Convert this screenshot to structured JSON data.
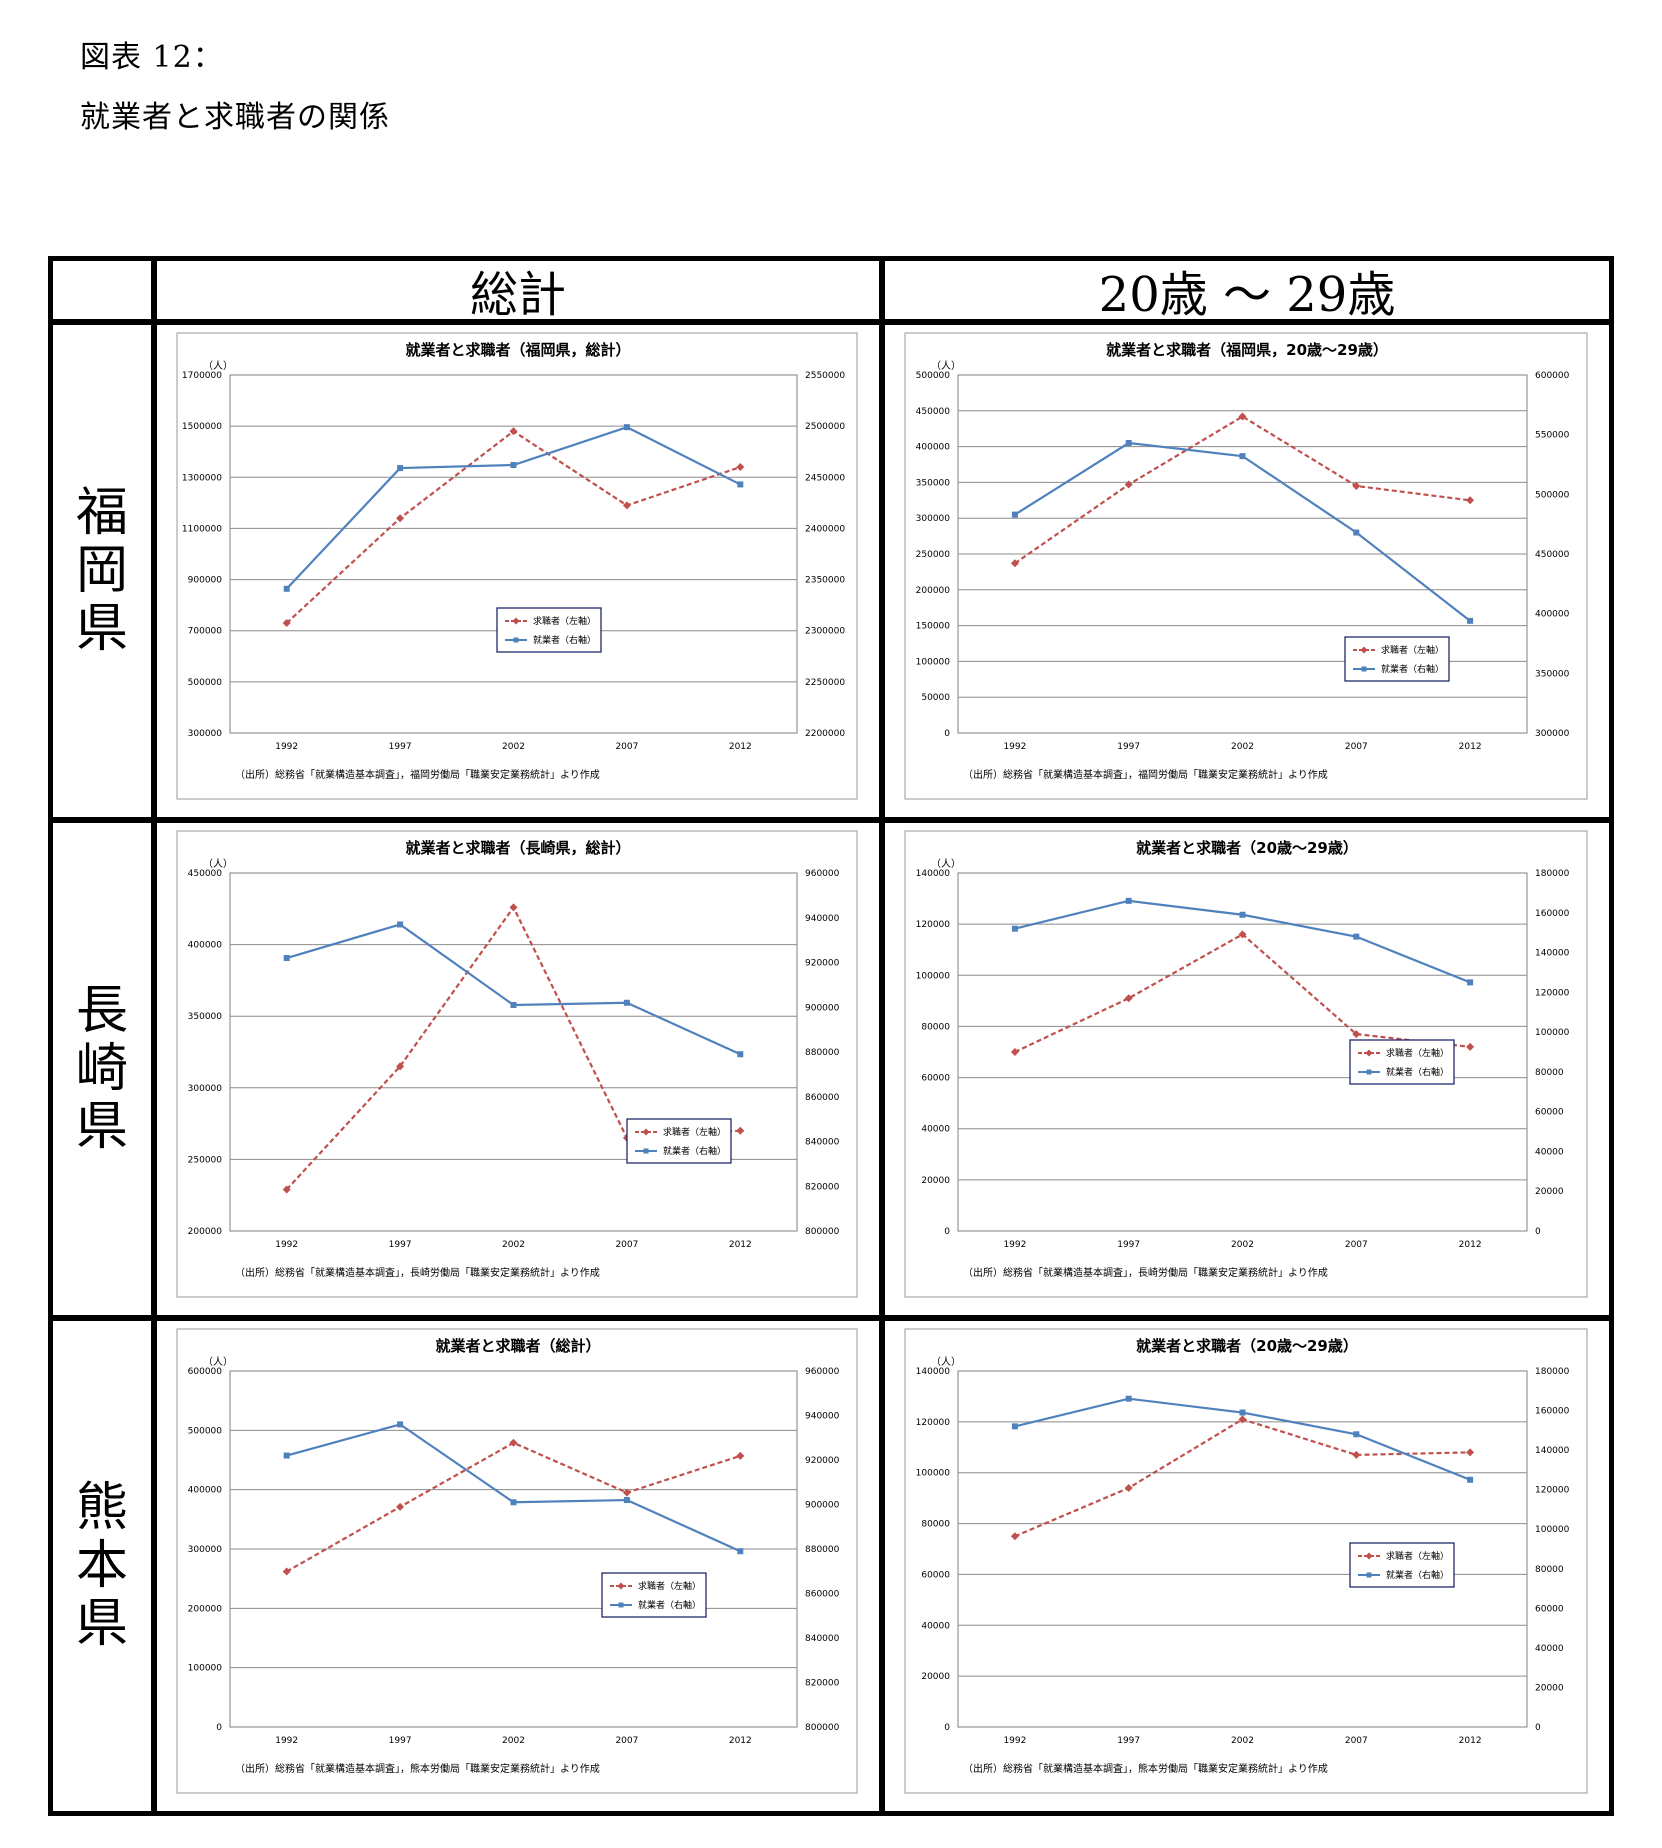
{
  "caption": {
    "line1": "図表 12：",
    "line2": "就業者と求職者の関係"
  },
  "table": {
    "col_headers": [
      "総計",
      "20歳 〜 29歳"
    ],
    "row_headers": [
      [
        "福",
        "岡",
        "県"
      ],
      [
        "長",
        "崎",
        "県"
      ],
      [
        "熊",
        "本",
        "県"
      ]
    ]
  },
  "legend": {
    "left": "求職者（左軸）",
    "right": "就業者（右軸）"
  },
  "unit_label": "（人）",
  "colors": {
    "seekers": "#c0504d",
    "employed": "#4f81bd"
  },
  "chart_data": [
    {
      "type": "line",
      "title": "就業者と求職者（福岡県，総計）",
      "categories": [
        "1992",
        "1997",
        "2002",
        "2007",
        "2012"
      ],
      "left_axis": {
        "ylim": [
          300000,
          1700000
        ],
        "ticks": [
          "1700000",
          "1500000",
          "1300000",
          "1100000",
          "900000",
          "700000",
          "500000",
          "300000"
        ]
      },
      "right_axis": {
        "ylim": [
          2200000,
          2550000
        ],
        "ticks": [
          "2550000",
          "2500000",
          "2450000",
          "2400000",
          "2350000",
          "2300000",
          "2250000",
          "2200000"
        ]
      },
      "series": [
        {
          "name": "求職者（左軸）",
          "axis": "left",
          "values": [
            730000,
            1140000,
            1480000,
            1190000,
            1340000
          ]
        },
        {
          "name": "就業者（右軸）",
          "axis": "right",
          "values": [
            2341000,
            2459000,
            2462000,
            2499000,
            2443000
          ]
        }
      ],
      "source": "（出所）総務省「就業構造基本調査」，福岡労働局「職業安定業務統計」より作成"
    },
    {
      "type": "line",
      "title": "就業者と求職者（福岡県，20歳〜29歳）",
      "categories": [
        "1992",
        "1997",
        "2002",
        "2007",
        "2012"
      ],
      "left_axis": {
        "ylim": [
          0,
          500000
        ],
        "ticks": [
          "500000",
          "450000",
          "400000",
          "350000",
          "300000",
          "250000",
          "200000",
          "150000",
          "100000",
          "50000",
          "0"
        ]
      },
      "right_axis": {
        "ylim": [
          300000,
          600000
        ],
        "ticks": [
          "600000",
          "550000",
          "500000",
          "450000",
          "400000",
          "350000",
          "300000"
        ]
      },
      "series": [
        {
          "name": "求職者（左軸）",
          "axis": "left",
          "values": [
            237000,
            347000,
            442000,
            345000,
            325000
          ]
        },
        {
          "name": "就業者（右軸）",
          "axis": "right",
          "values": [
            483000,
            543000,
            532000,
            468000,
            394000
          ]
        }
      ],
      "source": "（出所）総務省「就業構造基本調査」，福岡労働局「職業安定業務統計」より作成"
    },
    {
      "type": "line",
      "title": "就業者と求職者（長崎県，総計）",
      "categories": [
        "1992",
        "1997",
        "2002",
        "2007",
        "2012"
      ],
      "left_axis": {
        "ylim": [
          200000,
          450000
        ],
        "ticks": [
          "450000",
          "400000",
          "350000",
          "300000",
          "250000",
          "200000"
        ]
      },
      "right_axis": {
        "ylim": [
          800000,
          960000
        ],
        "ticks": [
          "960000",
          "940000",
          "920000",
          "900000",
          "880000",
          "860000",
          "840000",
          "820000",
          "800000"
        ]
      },
      "series": [
        {
          "name": "求職者（左軸）",
          "axis": "left",
          "values": [
            229000,
            315000,
            426000,
            265000,
            270000
          ]
        },
        {
          "name": "就業者（右軸）",
          "axis": "right",
          "values": [
            922000,
            937000,
            901000,
            902000,
            879000
          ]
        }
      ],
      "source": "（出所）総務省「就業構造基本調査」，長崎労働局「職業安定業務統計」より作成"
    },
    {
      "type": "line",
      "title": "就業者と求職者（20歳〜29歳）",
      "categories": [
        "1992",
        "1997",
        "2002",
        "2007",
        "2012"
      ],
      "left_axis": {
        "ylim": [
          0,
          140000
        ],
        "ticks": [
          "140000",
          "120000",
          "100000",
          "80000",
          "60000",
          "40000",
          "20000",
          "0"
        ]
      },
      "right_axis": {
        "ylim": [
          0,
          180000
        ],
        "ticks": [
          "180000",
          "160000",
          "140000",
          "120000",
          "100000",
          "80000",
          "60000",
          "40000",
          "20000",
          "0"
        ]
      },
      "series": [
        {
          "name": "求職者（左軸）",
          "axis": "left",
          "values": [
            70000,
            91000,
            116000,
            77000,
            72000
          ]
        },
        {
          "name": "就業者（右軸）",
          "axis": "right",
          "values": [
            152000,
            166000,
            159000,
            148000,
            125000
          ]
        }
      ],
      "source": "（出所）総務省「就業構造基本調査」，長崎労働局「職業安定業務統計」より作成"
    },
    {
      "type": "line",
      "title": "就業者と求職者（総計）",
      "categories": [
        "1992",
        "1997",
        "2002",
        "2007",
        "2012"
      ],
      "left_axis": {
        "ylim": [
          0,
          600000
        ],
        "ticks": [
          "600000",
          "500000",
          "400000",
          "300000",
          "200000",
          "100000",
          "0"
        ]
      },
      "right_axis": {
        "ylim": [
          800000,
          960000
        ],
        "ticks": [
          "960000",
          "940000",
          "920000",
          "900000",
          "880000",
          "860000",
          "840000",
          "820000",
          "800000"
        ]
      },
      "series": [
        {
          "name": "求職者（左軸）",
          "axis": "left",
          "values": [
            262000,
            371000,
            479000,
            395000,
            457000
          ]
        },
        {
          "name": "就業者（右軸）",
          "axis": "right",
          "values": [
            922000,
            936000,
            901000,
            902000,
            879000
          ]
        }
      ],
      "source": "（出所）総務省「就業構造基本調査」，熊本労働局「職業安定業務統計」より作成"
    },
    {
      "type": "line",
      "title": "就業者と求職者（20歳〜29歳）",
      "categories": [
        "1992",
        "1997",
        "2002",
        "2007",
        "2012"
      ],
      "left_axis": {
        "ylim": [
          0,
          140000
        ],
        "ticks": [
          "140000",
          "120000",
          "100000",
          "80000",
          "60000",
          "40000",
          "20000",
          "0"
        ]
      },
      "right_axis": {
        "ylim": [
          0,
          180000
        ],
        "ticks": [
          "180000",
          "160000",
          "140000",
          "120000",
          "100000",
          "80000",
          "60000",
          "40000",
          "20000",
          "0"
        ]
      },
      "series": [
        {
          "name": "求職者（左軸）",
          "axis": "left",
          "values": [
            75000,
            94000,
            121000,
            107000,
            108000
          ]
        },
        {
          "name": "就業者（右軸）",
          "axis": "right",
          "values": [
            152000,
            166000,
            159000,
            148000,
            125000
          ]
        }
      ],
      "source": "（出所）総務省「就業構造基本調査」，熊本労働局「職業安定業務統計」より作成"
    }
  ]
}
